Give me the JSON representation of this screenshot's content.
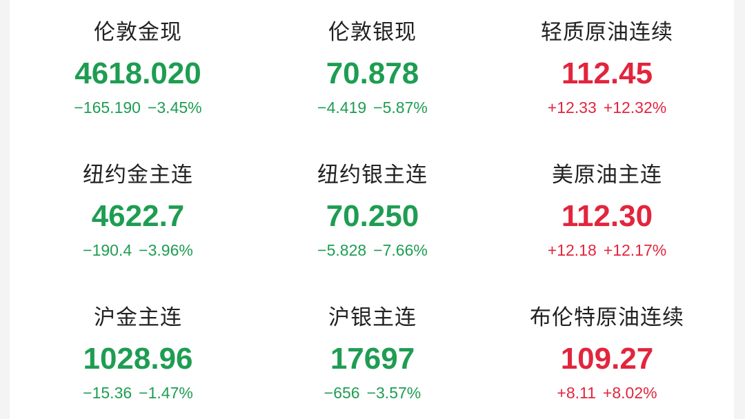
{
  "colors": {
    "down": "#1e9d52",
    "up": "#e2253d"
  },
  "quotes": [
    {
      "name": "伦敦金现",
      "price": "4618.020",
      "change": "−165.190",
      "pct": "−3.45%",
      "dir": "down"
    },
    {
      "name": "伦敦银现",
      "price": "70.878",
      "change": "−4.419",
      "pct": "−5.87%",
      "dir": "down"
    },
    {
      "name": "轻质原油连续",
      "price": "112.45",
      "change": "+12.33",
      "pct": "+12.32%",
      "dir": "up"
    },
    {
      "name": "纽约金主连",
      "price": "4622.7",
      "change": "−190.4",
      "pct": "−3.96%",
      "dir": "down"
    },
    {
      "name": "纽约银主连",
      "price": "70.250",
      "change": "−5.828",
      "pct": "−7.66%",
      "dir": "down"
    },
    {
      "name": "美原油主连",
      "price": "112.30",
      "change": "+12.18",
      "pct": "+12.17%",
      "dir": "up"
    },
    {
      "name": "沪金主连",
      "price": "1028.96",
      "change": "−15.36",
      "pct": "−1.47%",
      "dir": "down"
    },
    {
      "name": "沪银主连",
      "price": "17697",
      "change": "−656",
      "pct": "−3.57%",
      "dir": "down"
    },
    {
      "name": "布伦特原油连续",
      "price": "109.27",
      "change": "+8.11",
      "pct": "+8.02%",
      "dir": "up"
    }
  ]
}
